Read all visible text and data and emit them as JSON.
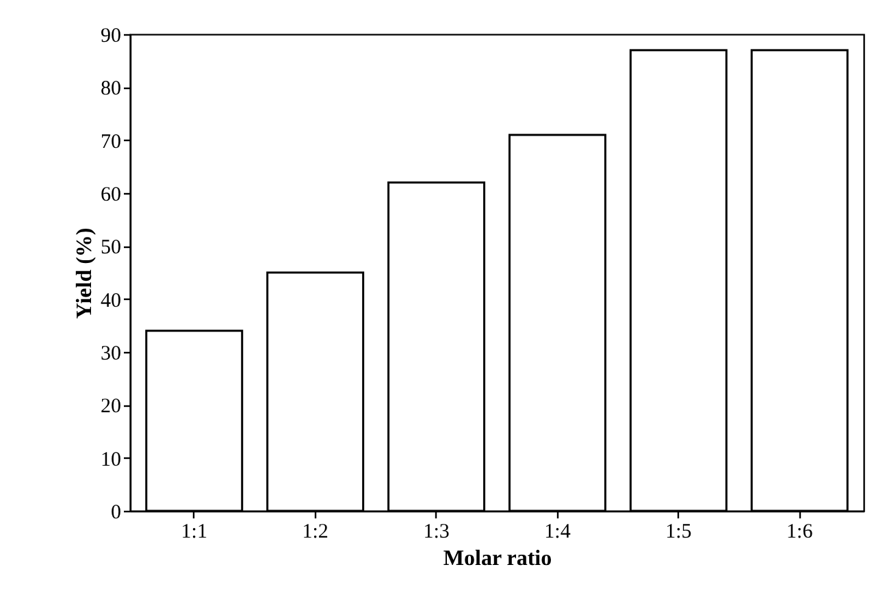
{
  "chart_data": {
    "type": "bar",
    "xlabel": "Molar ratio",
    "ylabel": "Yield (%)",
    "categories": [
      "1:1",
      "1:2",
      "1:3",
      "1:4",
      "1:5",
      "1:6"
    ],
    "values": [
      34,
      45,
      62,
      71,
      87,
      87
    ],
    "color": "#ffffff",
    "ylim": [
      0,
      90
    ],
    "yticks": [
      0,
      10,
      20,
      30,
      40,
      50,
      60,
      70,
      80,
      90
    ],
    "grid": false
  }
}
